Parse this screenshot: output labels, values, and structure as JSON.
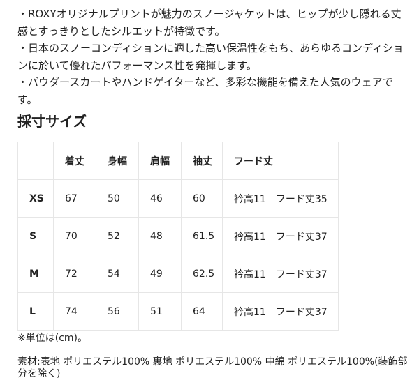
{
  "description": [
    "・ROXYオリジナルプリントが魅力のスノージャケットは、ヒップが少し隠れる丈感とすっきりとしたシルエットが特徴です。",
    "・日本のスノーコンディションに適した高い保温性をもち、あらゆるコンディションに於いて優れたパフォーマンス性を発揮します。",
    "・パウダースカートやハンドゲイターなど、多彩な機能を備えた人気のウェアです。"
  ],
  "size_heading": "採寸サイズ",
  "table": {
    "headers": [
      "",
      "着丈",
      "身幅",
      "肩幅",
      "袖丈",
      "フード丈"
    ],
    "rows": [
      [
        "XS",
        "67",
        "50",
        "46",
        "60",
        "衿高11　フード丈35"
      ],
      [
        "S",
        "70",
        "52",
        "48",
        "61.5",
        "衿高11　フード丈37"
      ],
      [
        "M",
        "72",
        "54",
        "49",
        "62.5",
        "衿高11　フード丈37"
      ],
      [
        "L",
        "74",
        "56",
        "51",
        "64",
        "衿高11　フード丈37"
      ]
    ]
  },
  "unit_note": "※単位は(cm)。",
  "material": "素材:表地 ポリエステル100% 裏地 ポリエステル100% 中綿 ポリエステル100%(装飾部分を除く)"
}
